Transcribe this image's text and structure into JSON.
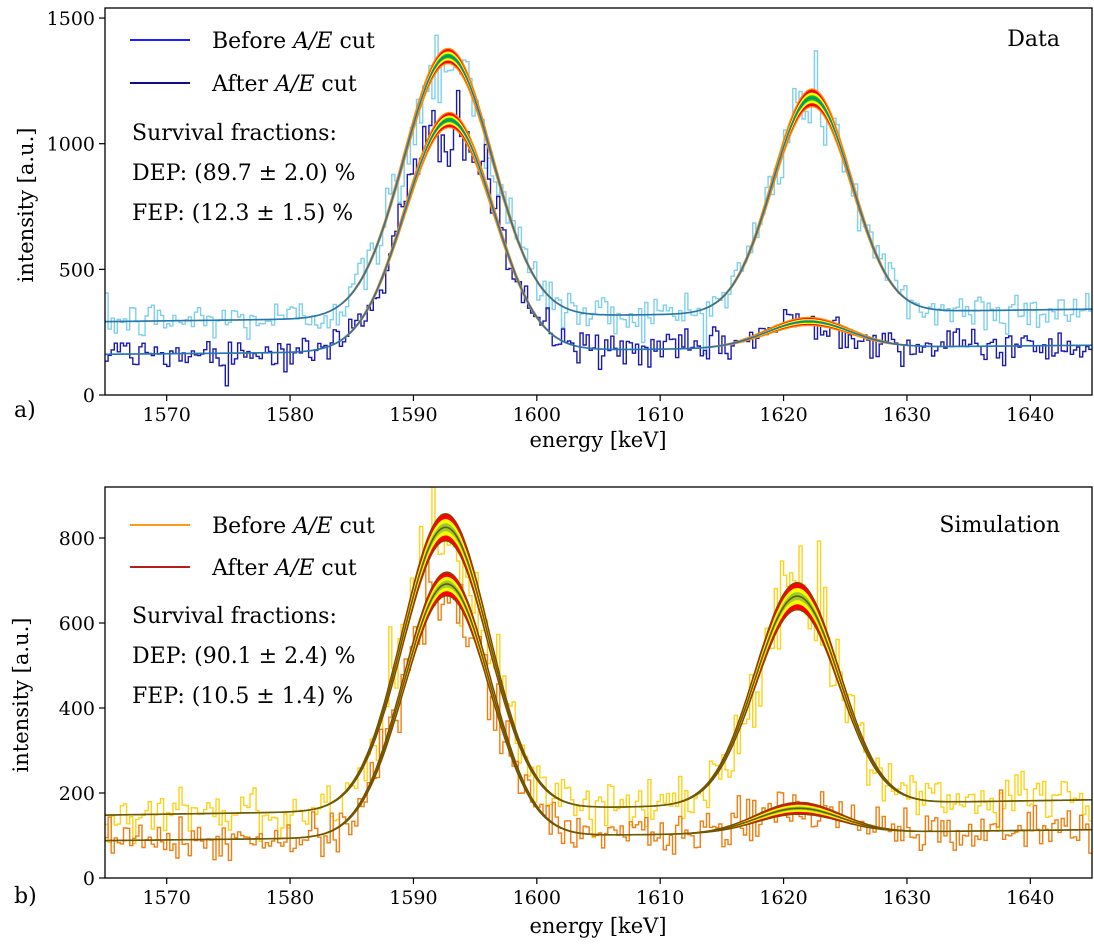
{
  "chart_data": [
    {
      "panel": "a)",
      "type": "line",
      "subtype": "step histogram with fitted curves and uncertainty bands",
      "title": "",
      "corner_label": "Data",
      "xlabel": "energy [keV]",
      "ylabel": "intensity [a.u.]",
      "xlim": [
        1565,
        1645
      ],
      "ylim": [
        0,
        1540
      ],
      "xticks": [
        1570,
        1580,
        1590,
        1600,
        1610,
        1620,
        1630,
        1640
      ],
      "yticks": [
        0,
        500,
        1000,
        1500
      ],
      "grid": false,
      "legend_position": "top-left",
      "legend": [
        {
          "label_pre": "Before ",
          "label_math": "A/E",
          "label_post": " cut",
          "color": "#1f1fff"
        },
        {
          "label_pre": "After ",
          "label_math": "A/E",
          "label_post": " cut",
          "color": "#0d0d8c"
        }
      ],
      "annotation_title": "Survival fractions:",
      "annotation_lines": [
        {
          "prefix": "DEP: ",
          "value": "(89.7 ± 2.0) %"
        },
        {
          "prefix": "FEP: ",
          "value": "(12.3 ± 1.5) %"
        }
      ],
      "hist_colors": {
        "before": "#7fd0ec",
        "after": "#1a1ab0"
      },
      "band_colors": {
        "outer": "#ff0000",
        "mid": "#ffff00",
        "inner": "#00cc00",
        "fit": "#1f77b4",
        "fit_edge": "#ff8c00"
      },
      "series": [
        {
          "name": "Before A/E cut",
          "fit": {
            "bg_low": 292,
            "bg_slope": 0.62,
            "peaks": [
              {
                "mu": 1592.8,
                "sigma": 3.6,
                "amp": 1040,
                "band": 30
              },
              {
                "mu": 1622.3,
                "sigma": 3.2,
                "amp": 855,
                "band": 35
              }
            ]
          }
        },
        {
          "name": "After A/E cut",
          "fit": {
            "bg_low": 162,
            "bg_slope": 0.45,
            "peaks": [
              {
                "mu": 1592.9,
                "sigma": 3.6,
                "amp": 920,
                "band": 30
              },
              {
                "mu": 1622.0,
                "sigma": 3.4,
                "amp": 105,
                "band": 16
              }
            ]
          }
        }
      ]
    },
    {
      "panel": "b)",
      "type": "line",
      "subtype": "step histogram with fitted curves and uncertainty bands",
      "title": "",
      "corner_label": "Simulation",
      "xlabel": "energy [keV]",
      "ylabel": "intensity [a.u.]",
      "xlim": [
        1565,
        1645
      ],
      "ylim": [
        0,
        920
      ],
      "xticks": [
        1570,
        1580,
        1590,
        1600,
        1610,
        1620,
        1630,
        1640
      ],
      "yticks": [
        0,
        200,
        400,
        600,
        800
      ],
      "grid": false,
      "legend_position": "top-left",
      "legend": [
        {
          "label_pre": "Before ",
          "label_math": "A/E",
          "label_post": " cut",
          "color": "#ff9a1f"
        },
        {
          "label_pre": "After ",
          "label_math": "A/E",
          "label_post": " cut",
          "color": "#b81d1d"
        }
      ],
      "annotation_title": "Survival fractions:",
      "annotation_lines": [
        {
          "prefix": "DEP: ",
          "value": "(90.1 ± 2.4) %"
        },
        {
          "prefix": "FEP: ",
          "value": "(10.5 ± 1.4) %"
        }
      ],
      "hist_colors": {
        "before": "#ffd21a",
        "after": "#f07f10"
      },
      "band_colors": {
        "outer": "#ff0000",
        "mid": "#ffff00",
        "inner": "#9acd32",
        "fit": "#6b5a00",
        "fit_edge": "#7a4a00"
      },
      "series": [
        {
          "name": "Before A/E cut",
          "fit": {
            "bg_low": 148,
            "bg_slope": 0.45,
            "peaks": [
              {
                "mu": 1592.6,
                "sigma": 3.5,
                "amp": 665,
                "band": 32
              },
              {
                "mu": 1621.1,
                "sigma": 3.4,
                "amp": 490,
                "band": 32
              }
            ]
          }
        },
        {
          "name": "After A/E cut",
          "fit": {
            "bg_low": 88,
            "bg_slope": 0.32,
            "peaks": [
              {
                "mu": 1592.7,
                "sigma": 3.5,
                "amp": 595,
                "band": 28
              },
              {
                "mu": 1621.2,
                "sigma": 3.4,
                "amp": 58,
                "band": 14
              }
            ]
          }
        }
      ]
    }
  ]
}
